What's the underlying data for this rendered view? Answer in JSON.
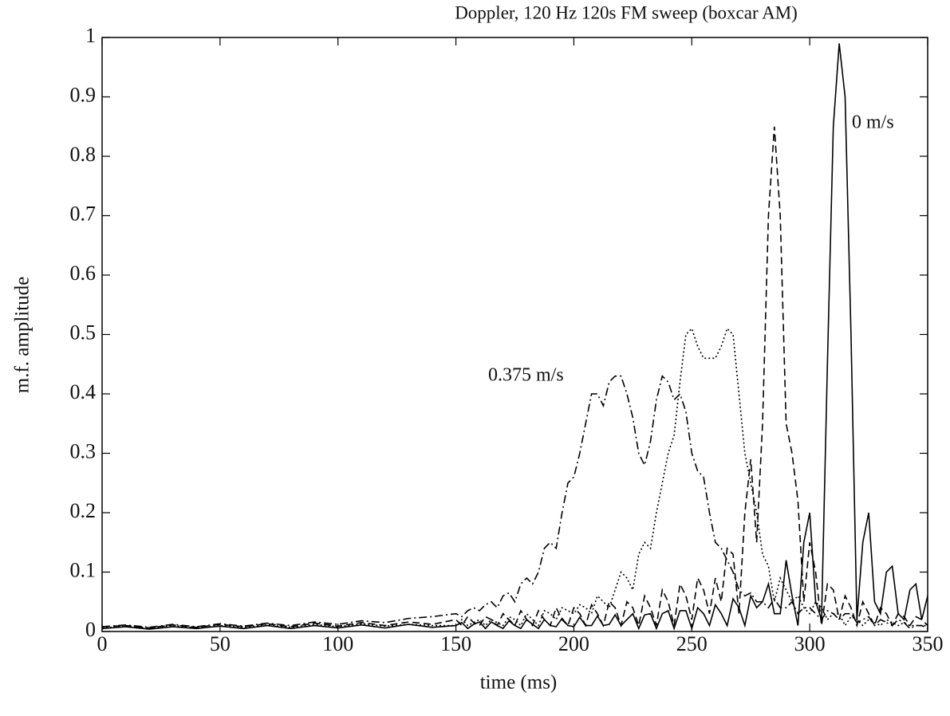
{
  "chart_data": {
    "type": "line",
    "title": "Doppler, 120 Hz 120s FM sweep (boxcar AM)",
    "xlabel": "time (ms)",
    "ylabel": "m.f. amplitude",
    "annotations": [
      "0 m/s",
      "0.375 m/s"
    ],
    "xlim": [
      0,
      350
    ],
    "ylim": [
      0,
      1
    ],
    "xticks": [
      0,
      50,
      100,
      150,
      200,
      250,
      300,
      350
    ],
    "yticks": [
      0,
      0.1,
      0.2,
      0.3,
      0.4,
      0.5,
      0.6,
      0.7,
      0.8,
      0.9,
      1
    ],
    "grid": false,
    "x": [
      0,
      10,
      20,
      30,
      40,
      50,
      60,
      70,
      80,
      90,
      100,
      110,
      120,
      130,
      140,
      150,
      152.5,
      155,
      157.5,
      160,
      162.5,
      165,
      167.5,
      170,
      172.5,
      175,
      177.5,
      180,
      182.5,
      185,
      187.5,
      190,
      192.5,
      195,
      197.5,
      200,
      202.5,
      205,
      207.5,
      210,
      212.5,
      215,
      217.5,
      220,
      222.5,
      225,
      227.5,
      230,
      232.5,
      235,
      237.5,
      240,
      242.5,
      245,
      247.5,
      250,
      252.5,
      255,
      257.5,
      260,
      262.5,
      265,
      267.5,
      270,
      272.5,
      275,
      277.5,
      280,
      282.5,
      285,
      287.5,
      290,
      292.5,
      295,
      297.5,
      300,
      302.5,
      305,
      307.5,
      310,
      312.5,
      315,
      317.5,
      320,
      322.5,
      325,
      327.5,
      330,
      332.5,
      335,
      337.5,
      340,
      342.5,
      345,
      347.5,
      350
    ],
    "series": [
      {
        "color": "#000000",
        "style": "solid",
        "values": [
          0.005,
          0.008,
          0.004,
          0.008,
          0.005,
          0.009,
          0.005,
          0.01,
          0.005,
          0.01,
          0.006,
          0.011,
          0.006,
          0.012,
          0.007,
          0.01,
          0.015,
          0.005,
          0.012,
          0.016,
          0.005,
          0.016,
          0.01,
          0.005,
          0.018,
          0.01,
          0.005,
          0.02,
          0.012,
          0.005,
          0.02,
          0.01,
          0.008,
          0.022,
          0.01,
          0.008,
          0.024,
          0.01,
          0.01,
          0.026,
          0.01,
          0.012,
          0.028,
          0.01,
          0.02,
          0.03,
          0.005,
          0.028,
          0.03,
          0.005,
          0.03,
          0.035,
          0.005,
          0.035,
          0.035,
          0.005,
          0.04,
          0.03,
          0.01,
          0.045,
          0.03,
          0.01,
          0.055,
          0.04,
          0.01,
          0.06,
          0.04,
          0.05,
          0.08,
          0.03,
          0.03,
          0.12,
          0.06,
          0.01,
          0.15,
          0.2,
          0.05,
          0.02,
          0.45,
          0.85,
          0.99,
          0.9,
          0.5,
          0.02,
          0.15,
          0.2,
          0.05,
          0.03,
          0.1,
          0.11,
          0.03,
          0.02,
          0.07,
          0.08,
          0.02,
          0.06
        ]
      },
      {
        "color": "#000000",
        "style": "dashed",
        "values": [
          0.008,
          0.01,
          0.006,
          0.011,
          0.007,
          0.012,
          0.008,
          0.013,
          0.008,
          0.014,
          0.009,
          0.015,
          0.01,
          0.016,
          0.012,
          0.02,
          0.01,
          0.025,
          0.015,
          0.01,
          0.025,
          0.02,
          0.01,
          0.03,
          0.02,
          0.01,
          0.035,
          0.02,
          0.01,
          0.035,
          0.02,
          0.01,
          0.04,
          0.02,
          0.01,
          0.04,
          0.03,
          0.01,
          0.045,
          0.03,
          0.01,
          0.05,
          0.04,
          0.01,
          0.05,
          0.04,
          0.01,
          0.06,
          0.04,
          0.01,
          0.07,
          0.05,
          0.01,
          0.08,
          0.06,
          0.02,
          0.09,
          0.07,
          0.03,
          0.09,
          0.05,
          0.14,
          0.13,
          0.03,
          0.2,
          0.29,
          0.15,
          0.35,
          0.7,
          0.85,
          0.7,
          0.35,
          0.3,
          0.22,
          0.05,
          0.15,
          0.1,
          0.01,
          0.08,
          0.07,
          0.02,
          0.06,
          0.04,
          0.01,
          0.05,
          0.03,
          0.01,
          0.04,
          0.03,
          0.01,
          0.03,
          0.025,
          0.01,
          0.025,
          0.02,
          0.01
        ]
      },
      {
        "color": "#000000",
        "style": "dotted",
        "values": [
          0.006,
          0.009,
          0.005,
          0.01,
          0.006,
          0.01,
          0.007,
          0.011,
          0.007,
          0.012,
          0.008,
          0.013,
          0.009,
          0.012,
          0.01,
          0.01,
          0.02,
          0.01,
          0.015,
          0.02,
          0.01,
          0.02,
          0.015,
          0.01,
          0.025,
          0.02,
          0.01,
          0.03,
          0.02,
          0.01,
          0.035,
          0.03,
          0.02,
          0.04,
          0.035,
          0.03,
          0.045,
          0.04,
          0.03,
          0.06,
          0.05,
          0.04,
          0.07,
          0.1,
          0.09,
          0.07,
          0.13,
          0.15,
          0.14,
          0.2,
          0.25,
          0.3,
          0.33,
          0.42,
          0.5,
          0.51,
          0.48,
          0.46,
          0.46,
          0.46,
          0.48,
          0.51,
          0.5,
          0.4,
          0.3,
          0.25,
          0.2,
          0.13,
          0.11,
          0.05,
          0.09,
          0.07,
          0.05,
          0.06,
          0.04,
          0.03,
          0.05,
          0.04,
          0.02,
          0.03,
          0.03,
          0.01,
          0.025,
          0.02,
          0.01,
          0.02,
          0.015,
          0.01,
          0.02,
          0.015,
          0.01,
          0.015,
          0.01,
          0.01,
          0.01,
          0.01
        ]
      },
      {
        "color": "#000000",
        "style": "dashdot",
        "values": [
          0.008,
          0.011,
          0.007,
          0.012,
          0.008,
          0.013,
          0.009,
          0.014,
          0.01,
          0.016,
          0.012,
          0.018,
          0.015,
          0.022,
          0.025,
          0.03,
          0.025,
          0.035,
          0.04,
          0.035,
          0.045,
          0.05,
          0.04,
          0.06,
          0.065,
          0.05,
          0.08,
          0.09,
          0.08,
          0.1,
          0.14,
          0.15,
          0.14,
          0.2,
          0.25,
          0.26,
          0.3,
          0.35,
          0.4,
          0.4,
          0.38,
          0.42,
          0.43,
          0.43,
          0.4,
          0.36,
          0.3,
          0.28,
          0.32,
          0.39,
          0.43,
          0.42,
          0.39,
          0.4,
          0.37,
          0.3,
          0.27,
          0.26,
          0.2,
          0.15,
          0.14,
          0.12,
          0.1,
          0.07,
          0.06,
          0.065,
          0.05,
          0.05,
          0.04,
          0.055,
          0.04,
          0.04,
          0.05,
          0.03,
          0.04,
          0.04,
          0.03,
          0.02,
          0.035,
          0.03,
          0.02,
          0.03,
          0.03,
          0.015,
          0.02,
          0.025,
          0.01,
          0.02,
          0.015,
          0.01,
          0.02,
          0.015,
          0.005,
          0.01,
          0.01,
          0.005
        ]
      }
    ]
  }
}
